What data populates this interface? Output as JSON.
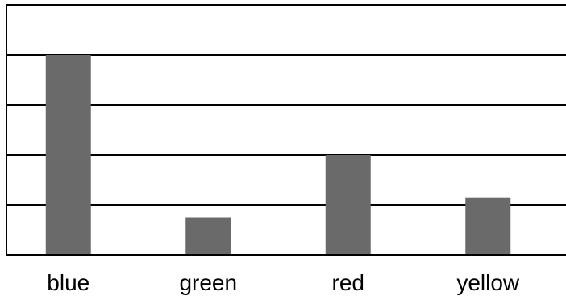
{
  "chart_data": {
    "type": "bar",
    "categories": [
      "blue",
      "green",
      "red",
      "yellow"
    ],
    "values": [
      4,
      0.75,
      2,
      1.15
    ],
    "title": "",
    "xlabel": "",
    "ylabel": "",
    "ylim": [
      0,
      5
    ],
    "grid": true,
    "legend": "none",
    "bar_color": "#6a6a6a",
    "grid_color": "#000000"
  }
}
